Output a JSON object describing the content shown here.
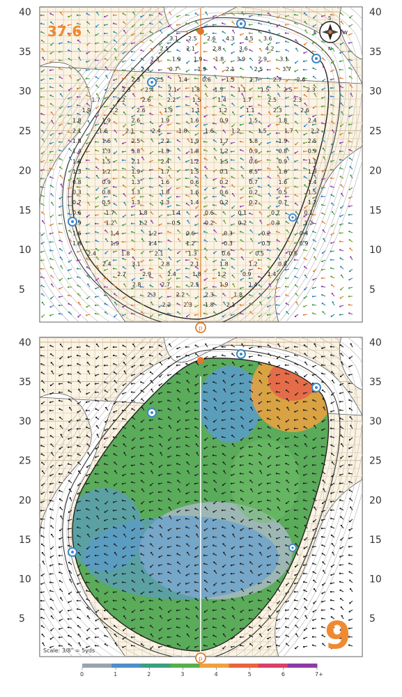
{
  "hole_number": "9",
  "green_depth": "37.6",
  "scale_label": "Scale: 3/8\" = 5yds",
  "compass": {
    "n": "N",
    "s": "S",
    "e": "E",
    "w": "W"
  },
  "axis_ticks": [
    "5",
    "10",
    "15",
    "20",
    "25",
    "30",
    "35",
    "40"
  ],
  "legend": {
    "labels": [
      "0",
      "1",
      "2",
      "3",
      "4",
      "5",
      "6",
      "7+"
    ],
    "colors": [
      "#9aa3ad",
      "#4d8fc9",
      "#3aa17e",
      "#55b04a",
      "#f0a040",
      "#e8653a",
      "#d9416a",
      "#8e3aa6"
    ]
  },
  "colors": {
    "paper": "#fbf3e4",
    "grid": "#d8c7a8",
    "green_fill": "#5aab5a",
    "accent_orange": "#f08a30",
    "sprinkler_blue": "#3d86c6"
  },
  "upper_panel_values": [
    "3.1",
    "2.5",
    "2.6",
    "4.3",
    "4.5",
    "3.6",
    "2.5",
    "2.1",
    "2.8",
    "3.6",
    "4.2",
    "2.3",
    "1.9",
    "1.9",
    "1.8",
    "3.9",
    "2.9",
    "3.1",
    "2.4",
    "0.7",
    "1.9",
    "2.1",
    "2.5",
    "3.7",
    "2.3",
    "2.5",
    "1.4",
    "0.6",
    "1.5",
    "1.7",
    "2.7",
    "2.6",
    "2.3",
    "2.4",
    "2.1",
    "1.8",
    "1.5",
    "1.1",
    "1.5",
    "2.5",
    "2.3",
    "1.7",
    "2.2",
    "2.6",
    "2.2",
    "1.5",
    "1.4",
    "1.7",
    "2.5",
    "2.3",
    "1.9",
    "2.2",
    "2.6",
    "1.9",
    "1.1",
    "1.2",
    "1.1",
    "2.3",
    "2.6",
    "1.8",
    "1.9",
    "2.6",
    "1.9",
    "1.6",
    "0.9",
    "1.5",
    "1.8",
    "2.4",
    "2.1",
    "1.6",
    "2.1",
    "2.4",
    "1.8",
    "1.6",
    "1.2",
    "1.5",
    "1.7",
    "2.2",
    "1.8",
    "1.6",
    "2.5",
    "2.2",
    "1.9",
    "1.7",
    "1.8",
    "1.9",
    "2.5",
    "1.4",
    "1.3",
    "1.8",
    "1.9",
    "1.8",
    "1.2",
    "0.9",
    "0.8",
    "0.9",
    "1.8",
    "1.5",
    "2.1",
    "2.4",
    "1.2",
    "1.5",
    "0.6",
    "0.9",
    "1.1",
    "1.3",
    "1.2",
    "1.9",
    "1.7",
    "1.5",
    "0.1",
    "0.5",
    "1.6",
    "1.9",
    "0.8",
    "0.9",
    "1.3",
    "1.6",
    "0.6",
    "0.2",
    "0.7",
    "1.6",
    "1.4",
    "0.3",
    "0.8",
    "1.3",
    "1.8",
    "1.6",
    "0.6",
    "0.2",
    "0.5",
    "1.5",
    "0.7",
    "0.5",
    "1.3",
    "1.3",
    "1.4",
    "0.2",
    "0.2",
    "0.7",
    "1.2",
    "0.6",
    "1.7",
    "1.8",
    "1.4",
    "0.6",
    "0.1",
    "0.7",
    "0.1",
    "0.9",
    "1.2",
    "1.2",
    "0.5",
    "0.2",
    "0.2",
    "0.3",
    "1.2",
    "1.6",
    "1.4",
    "1.2",
    "0.6",
    "0.3",
    "0.2",
    "0.4",
    "1.8",
    "1.9",
    "1.4",
    "1.2",
    "0.3",
    "0.3",
    "0.9",
    "2.4",
    "1.8",
    "2.1",
    "1.3",
    "0.6",
    "0.5",
    "0.6",
    "2.4",
    "3.1",
    "2.8",
    "2.1",
    "1.8",
    "1.2",
    "0.8",
    "2.7",
    "2.9",
    "2.4",
    "1.8",
    "1.2",
    "0.9",
    "1.4",
    "2.8",
    "2.7",
    "2.5",
    "1.9",
    "1.4",
    "2.3",
    "2.2",
    "2.3",
    "1.8",
    "2.2",
    "2.3",
    "1.8",
    "2.1"
  ]
}
